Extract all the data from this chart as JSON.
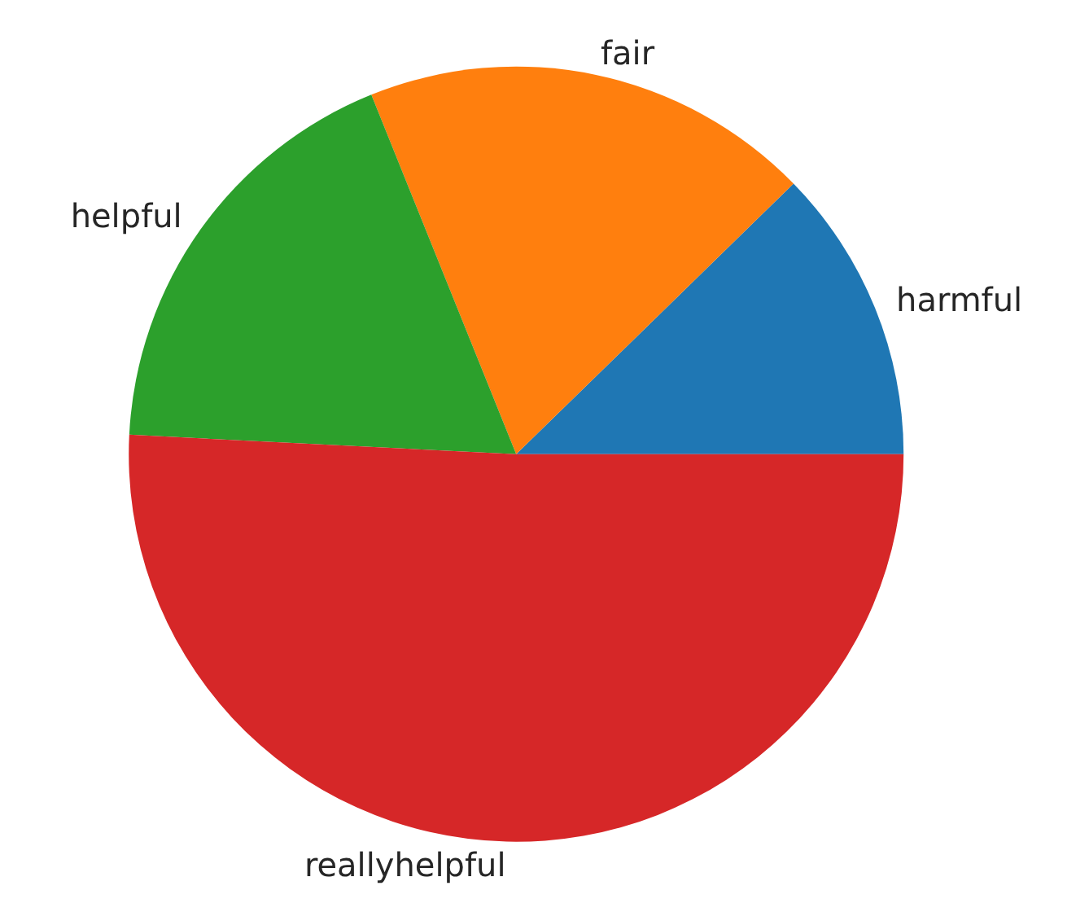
{
  "chart_data": {
    "type": "pie",
    "categories": [
      "harmful",
      "fair",
      "helpful",
      "reallyhelpful"
    ],
    "values": [
      12.3,
      18.8,
      18.1,
      50.8
    ],
    "colors": [
      "#1f77b4",
      "#ff7f0e",
      "#2ca02c",
      "#d62728"
    ],
    "legend": false
  }
}
